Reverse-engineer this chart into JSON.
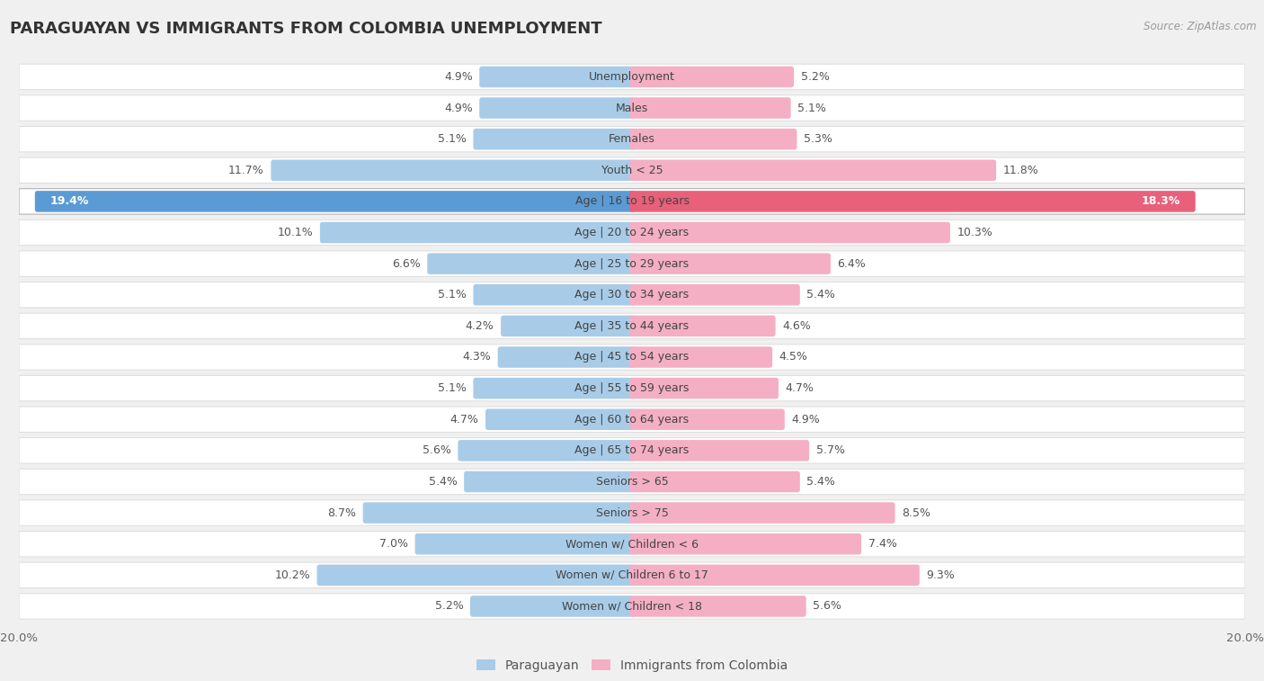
{
  "title": "PARAGUAYAN VS IMMIGRANTS FROM COLOMBIA UNEMPLOYMENT",
  "source": "Source: ZipAtlas.com",
  "categories": [
    "Unemployment",
    "Males",
    "Females",
    "Youth < 25",
    "Age | 16 to 19 years",
    "Age | 20 to 24 years",
    "Age | 25 to 29 years",
    "Age | 30 to 34 years",
    "Age | 35 to 44 years",
    "Age | 45 to 54 years",
    "Age | 55 to 59 years",
    "Age | 60 to 64 years",
    "Age | 65 to 74 years",
    "Seniors > 65",
    "Seniors > 75",
    "Women w/ Children < 6",
    "Women w/ Children 6 to 17",
    "Women w/ Children < 18"
  ],
  "paraguayan": [
    4.9,
    4.9,
    5.1,
    11.7,
    19.4,
    10.1,
    6.6,
    5.1,
    4.2,
    4.3,
    5.1,
    4.7,
    5.6,
    5.4,
    8.7,
    7.0,
    10.2,
    5.2
  ],
  "colombia": [
    5.2,
    5.1,
    5.3,
    11.8,
    18.3,
    10.3,
    6.4,
    5.4,
    4.6,
    4.5,
    4.7,
    4.9,
    5.7,
    5.4,
    8.5,
    7.4,
    9.3,
    5.6
  ],
  "blue_color": "#a8cce8",
  "pink_color": "#f4afc4",
  "highlight_blue": "#5b9bd5",
  "highlight_pink": "#e8607a",
  "bg_color": "#f0f0f0",
  "row_light": "#f8f8f8",
  "row_border": "#dddddd",
  "max_val": 20.0,
  "highlight_idx": 4,
  "label_fontsize": 9.0,
  "title_fontsize": 13.0,
  "source_fontsize": 8.5,
  "legend_fontsize": 10.0,
  "value_color": "#555555",
  "highlight_value_color": "#ffffff",
  "cat_label_color": "#444444",
  "title_color": "#333333"
}
